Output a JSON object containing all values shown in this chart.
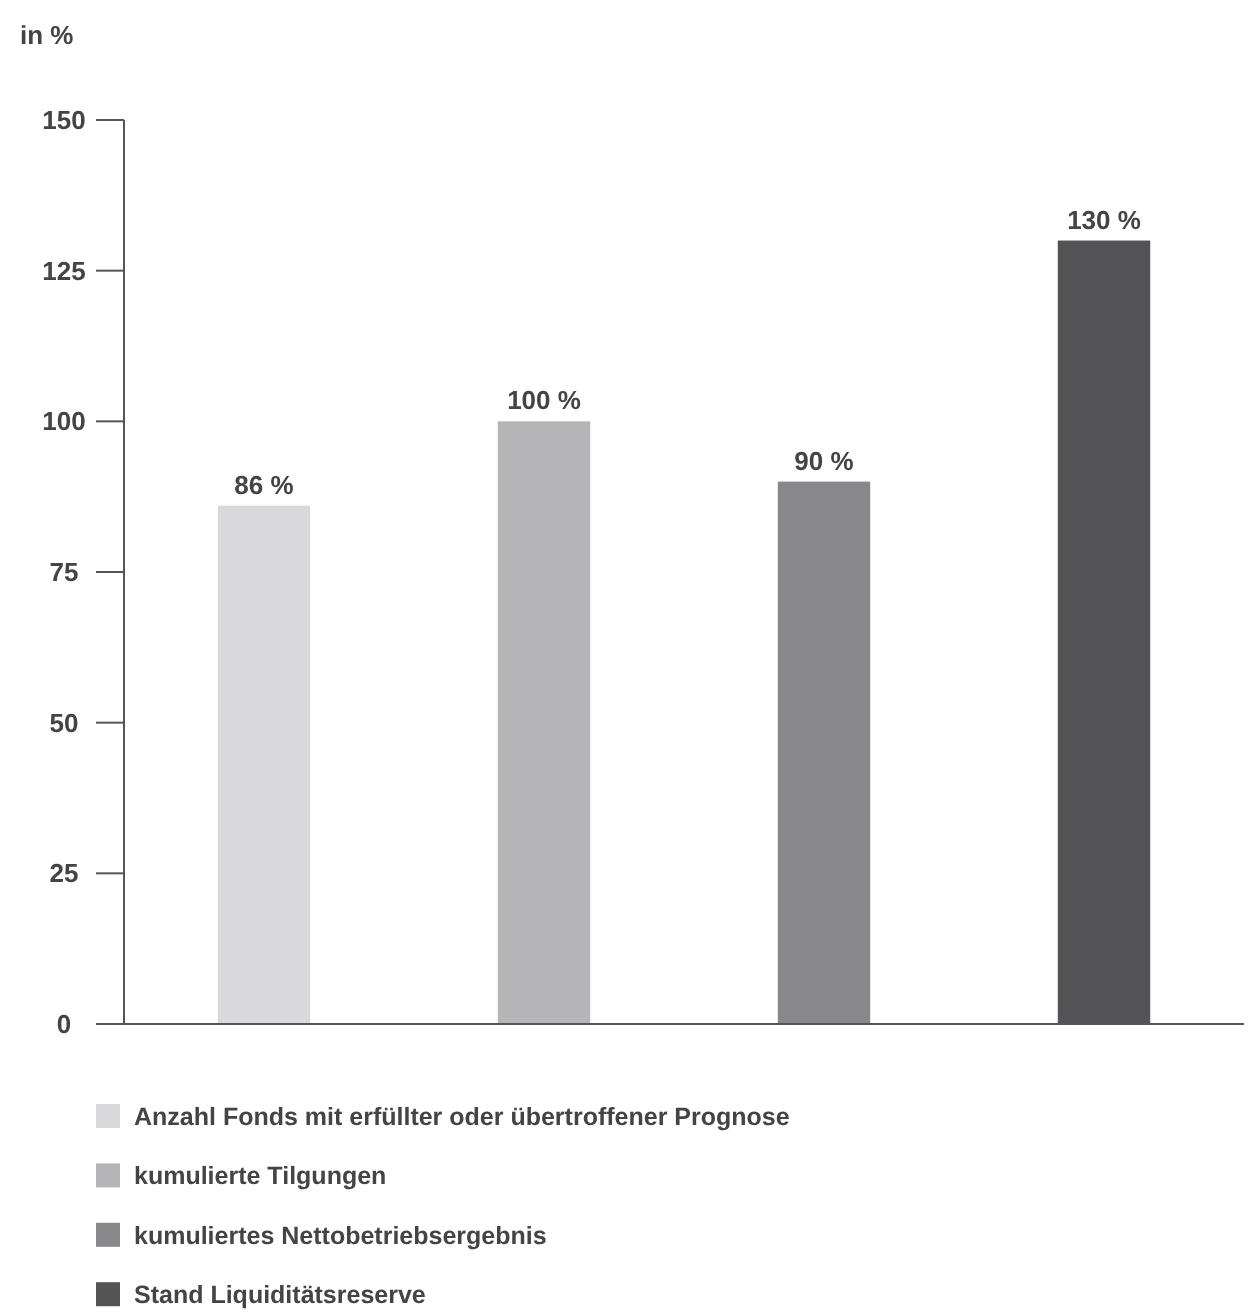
{
  "chart_data": {
    "type": "bar",
    "ylabel": "in %",
    "categories": [
      null,
      null,
      null,
      null
    ],
    "series": [
      {
        "name": "Anzahl Fonds mit erfüllter oder übertroffener Prognose",
        "color": "#d9d9db",
        "values": [
          86,
          null,
          null,
          null
        ],
        "value_labels": [
          "86 %",
          null,
          null,
          null
        ]
      },
      {
        "name": "kumulierte Tilgungen",
        "color": "#b5b5b8",
        "values": [
          null,
          100,
          null,
          null
        ],
        "value_labels": [
          null,
          "100 %",
          null,
          null
        ]
      },
      {
        "name": "kumuliertes Nettobetriebsergebnis",
        "color": "#88888b",
        "values": [
          null,
          null,
          90,
          null
        ],
        "value_labels": [
          null,
          null,
          "90 %",
          null
        ]
      },
      {
        "name": "Stand Liquiditätsreserve",
        "color": "#545456",
        "values": [
          null,
          null,
          null,
          130
        ],
        "value_labels": [
          null,
          null,
          null,
          "130 %"
        ]
      }
    ],
    "ylim": [
      0,
      150
    ],
    "yticks": [
      0,
      25,
      50,
      75,
      100,
      125,
      150
    ],
    "grid": false,
    "legend": "bottom"
  }
}
